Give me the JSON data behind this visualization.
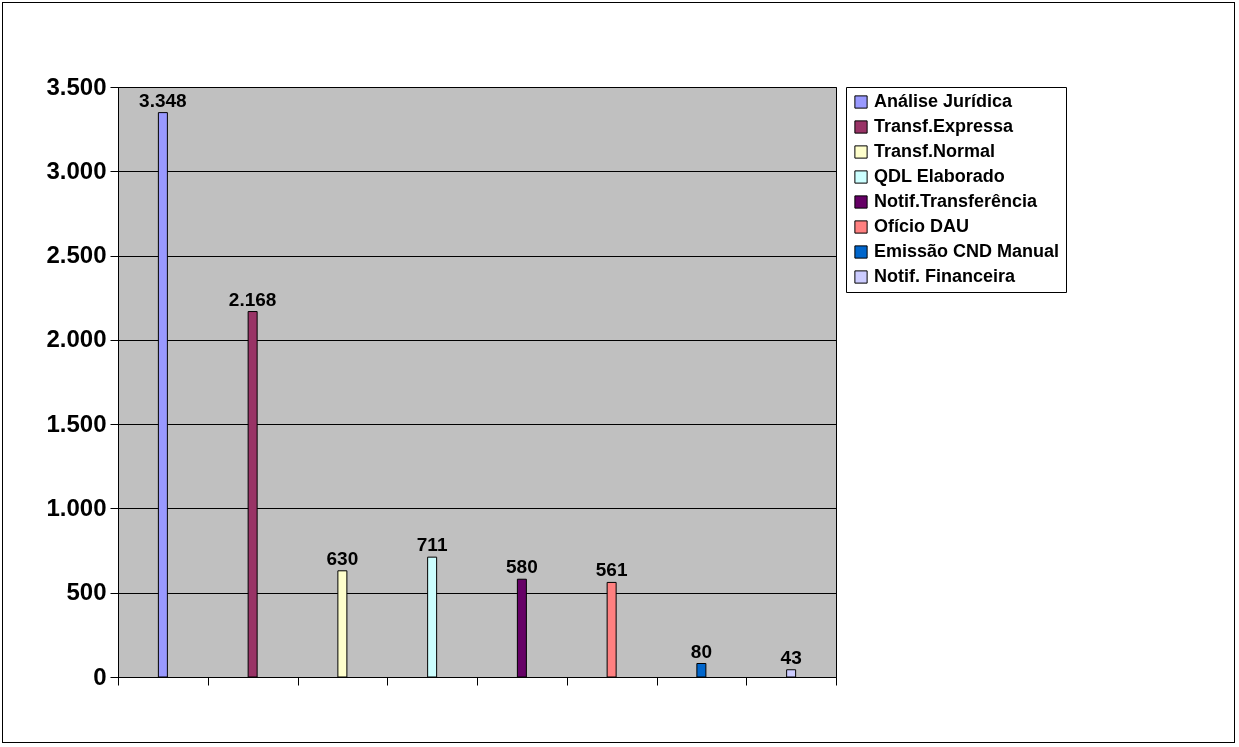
{
  "chart_data": {
    "type": "bar",
    "categories": [
      null,
      null,
      null,
      null,
      null,
      null,
      null,
      null
    ],
    "series": [
      {
        "name": "Análise Jurídica",
        "color": "#9999ff",
        "values": [
          3348,
          null,
          null,
          null,
          null,
          null,
          null,
          null
        ],
        "value_labels": [
          "3.348",
          null,
          null,
          null,
          null,
          null,
          null,
          null
        ]
      },
      {
        "name": "Transf.Expressa",
        "color": "#993366",
        "values": [
          null,
          2168,
          null,
          null,
          null,
          null,
          null,
          null
        ],
        "value_labels": [
          null,
          "2.168",
          null,
          null,
          null,
          null,
          null,
          null
        ]
      },
      {
        "name": "Transf.Normal",
        "color": "#ffffcc",
        "values": [
          null,
          null,
          630,
          null,
          null,
          null,
          null,
          null
        ],
        "value_labels": [
          null,
          null,
          "630",
          null,
          null,
          null,
          null,
          null
        ]
      },
      {
        "name": "QDL Elaborado",
        "color": "#ccffff",
        "values": [
          null,
          null,
          null,
          711,
          null,
          null,
          null,
          null
        ],
        "value_labels": [
          null,
          null,
          null,
          "711",
          null,
          null,
          null,
          null
        ]
      },
      {
        "name": "Notif.Transferência",
        "color": "#660066",
        "values": [
          null,
          null,
          null,
          null,
          580,
          null,
          null,
          null
        ],
        "value_labels": [
          null,
          null,
          null,
          null,
          "580",
          null,
          null,
          null
        ]
      },
      {
        "name": "Ofício DAU",
        "color": "#ff8080",
        "values": [
          null,
          null,
          null,
          null,
          null,
          561,
          null,
          null
        ],
        "value_labels": [
          null,
          null,
          null,
          null,
          null,
          "561",
          null,
          null
        ]
      },
      {
        "name": "Emissão CND Manual",
        "color": "#0066cc",
        "values": [
          null,
          null,
          null,
          null,
          null,
          null,
          80,
          null
        ],
        "value_labels": [
          null,
          null,
          null,
          null,
          null,
          null,
          "80",
          null
        ]
      },
      {
        "name": "Notif. Financeira",
        "color": "#ccccff",
        "values": [
          null,
          null,
          null,
          null,
          null,
          null,
          null,
          43
        ],
        "value_labels": [
          null,
          null,
          null,
          null,
          null,
          null,
          null,
          "43"
        ]
      }
    ],
    "ylim": [
      0,
      3500
    ],
    "yticks": [
      0,
      500,
      {
        "value": 1000,
        "label": "1.000"
      },
      {
        "value": 1500,
        "label": "1.500"
      },
      {
        "value": 2000,
        "label": "2.000"
      },
      {
        "value": 2500,
        "label": "2.500"
      },
      {
        "value": 3000,
        "label": "3.000"
      },
      {
        "value": 3500,
        "label": "3.500"
      }
    ],
    "grid": "y",
    "legend": "right",
    "tick_labels": "y"
  }
}
